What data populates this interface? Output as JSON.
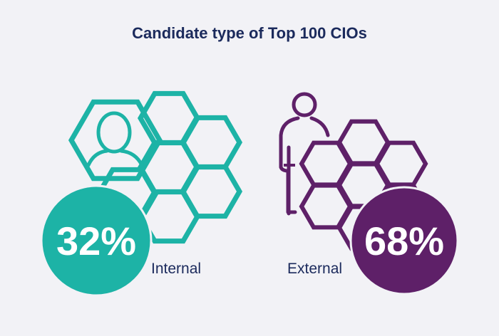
{
  "chart_data": {
    "type": "pie",
    "title": "Candidate type of Top 100 CIOs",
    "categories": [
      "Internal",
      "External"
    ],
    "values": [
      32,
      68
    ],
    "value_labels": [
      "32%",
      "68%"
    ],
    "unit": "%",
    "colors": [
      "#1db3a6",
      "#5e2068"
    ]
  }
}
